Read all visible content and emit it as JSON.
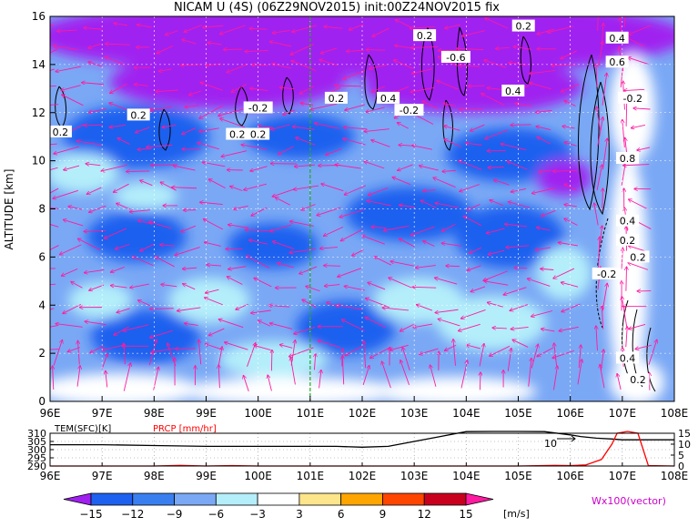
{
  "title": "NICAM U (4S) (06Z29NOV2015) init:00Z24NOV2015 fix",
  "chart_data": [
    {
      "type": "heatmap",
      "panel": "cross-section",
      "ylabel": "ALTITUDE [km]",
      "xlim": [
        96,
        108
      ],
      "ylim": [
        0,
        16
      ],
      "x_ticks": [
        {
          "value": 96,
          "label": "96E"
        },
        {
          "value": 97,
          "label": "97E"
        },
        {
          "value": 98,
          "label": "98E"
        },
        {
          "value": 99,
          "label": "99E"
        },
        {
          "value": 100,
          "label": "100E"
        },
        {
          "value": 101,
          "label": "101E"
        },
        {
          "value": 102,
          "label": "102E"
        },
        {
          "value": 103,
          "label": "103E"
        },
        {
          "value": 104,
          "label": "104E"
        },
        {
          "value": 105,
          "label": "105E"
        },
        {
          "value": 106,
          "label": "106E"
        },
        {
          "value": 107,
          "label": "107E"
        },
        {
          "value": 108,
          "label": "108E"
        }
      ],
      "y_ticks": [
        {
          "value": 0,
          "label": "0"
        },
        {
          "value": 2,
          "label": "2"
        },
        {
          "value": 4,
          "label": "4"
        },
        {
          "value": 6,
          "label": "6"
        },
        {
          "value": 8,
          "label": "8"
        },
        {
          "value": 10,
          "label": "10"
        },
        {
          "value": 12,
          "label": "12"
        },
        {
          "value": 14,
          "label": "14"
        },
        {
          "value": 16,
          "label": "16"
        }
      ],
      "grid": true,
      "marker_line_lon": 101,
      "contour_labels": [
        {
          "lon": 96.2,
          "alt": 11.2,
          "text": "0.2"
        },
        {
          "lon": 97.7,
          "alt": 11.9,
          "text": "0.2"
        },
        {
          "lon": 99.6,
          "alt": 11.1,
          "text": "0.2"
        },
        {
          "lon": 100.0,
          "alt": 11.1,
          "text": "0.2"
        },
        {
          "lon": 100.0,
          "alt": 12.2,
          "text": "-0.2"
        },
        {
          "lon": 101.5,
          "alt": 12.6,
          "text": "0.2"
        },
        {
          "lon": 102.5,
          "alt": 12.6,
          "text": "0.4"
        },
        {
          "lon": 102.9,
          "alt": 12.1,
          "text": "-0.2"
        },
        {
          "lon": 103.2,
          "alt": 15.2,
          "text": "0.2"
        },
        {
          "lon": 103.8,
          "alt": 14.3,
          "text": "-0.6"
        },
        {
          "lon": 104.9,
          "alt": 12.9,
          "text": "0.4"
        },
        {
          "lon": 105.1,
          "alt": 15.6,
          "text": "0.2"
        },
        {
          "lon": 106.9,
          "alt": 15.1,
          "text": "0.4"
        },
        {
          "lon": 106.9,
          "alt": 14.1,
          "text": "0.6"
        },
        {
          "lon": 107.2,
          "alt": 12.6,
          "text": "-0.2"
        },
        {
          "lon": 107.1,
          "alt": 10.1,
          "text": "0.8"
        },
        {
          "lon": 107.1,
          "alt": 7.5,
          "text": "0.4"
        },
        {
          "lon": 107.1,
          "alt": 6.7,
          "text": "0.2"
        },
        {
          "lon": 107.3,
          "alt": 6.0,
          "text": "0.2"
        },
        {
          "lon": 106.7,
          "alt": 5.3,
          "text": "-0.2"
        },
        {
          "lon": 107.1,
          "alt": 1.8,
          "text": "0.4"
        },
        {
          "lon": 107.3,
          "alt": 0.9,
          "text": "0.2"
        }
      ]
    },
    {
      "type": "line",
      "panel": "surface",
      "xlim": [
        96,
        108
      ],
      "left_axis": {
        "label": "TEM(SFC)[K]",
        "ylim": [
          290,
          310
        ],
        "ticks": [
          "310",
          "305",
          "300",
          "295",
          "290"
        ]
      },
      "right_axis": {
        "label": "PRCP [mm/hr]",
        "ylim": [
          0,
          15
        ],
        "ticks": [
          "15",
          "10",
          "5",
          "0"
        ]
      },
      "annotation": "10",
      "series": [
        {
          "color": "#000000",
          "x": [
            96,
            97,
            98,
            99,
            99.7,
            100.5,
            101.5,
            102.0,
            102.5,
            103.0,
            103.5,
            104.0,
            104.5,
            105.0,
            105.5,
            106.0,
            106.2,
            106.5,
            106.8,
            107.0,
            107.5,
            108.0
          ],
          "values": [
            303,
            303,
            302.5,
            302,
            302,
            302,
            302,
            301.5,
            302,
            305,
            308,
            311,
            312,
            312,
            311,
            309,
            308,
            307,
            306.5,
            306,
            306,
            306
          ]
        },
        {
          "color": "#ff0000",
          "x": [
            96,
            97,
            98,
            98.5,
            99.0,
            99.5,
            100.0,
            101.0,
            102.0,
            103.0,
            104.0,
            105.0,
            105.7,
            106.0,
            106.3,
            106.6,
            106.8,
            106.9,
            107.1,
            107.3,
            107.5,
            108.0
          ],
          "values": [
            0,
            0,
            0,
            0.3,
            0,
            0.2,
            0,
            0,
            0,
            0,
            0,
            0,
            0.3,
            0.2,
            0.5,
            3,
            10,
            15,
            16,
            15,
            0.2,
            0
          ]
        }
      ],
      "x_ticks": [
        "96E",
        "97E",
        "98E",
        "99E",
        "100E",
        "101E",
        "102E",
        "103E",
        "104E",
        "105E",
        "106E",
        "107E",
        "108E"
      ]
    }
  ],
  "colorbar": {
    "unit": "[m/s]",
    "ticks": [
      "-15",
      "-12",
      "-9",
      "-6",
      "-3",
      "3",
      "6",
      "9",
      "12",
      "15"
    ],
    "colors": [
      "#a020f0",
      "#1e60ef",
      "#3a7ff0",
      "#7aa8f5",
      "#b4eefa",
      "#ffffff",
      "#fde58c",
      "#ffa500",
      "#ff4500",
      "#c8001e",
      "#ff1aa0"
    ]
  },
  "vector_label": "Wx100(vector)"
}
